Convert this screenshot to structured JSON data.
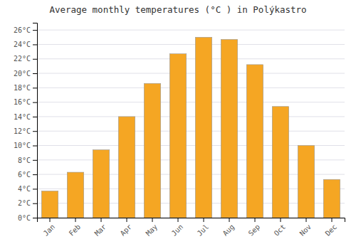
{
  "chart_data": {
    "type": "bar",
    "title": "Average monthly temperatures (°C ) in Polýkastro",
    "categories": [
      "Jan",
      "Feb",
      "Mar",
      "Apr",
      "May",
      "Jun",
      "Jul",
      "Aug",
      "Sep",
      "Oct",
      "Nov",
      "Dec"
    ],
    "values": [
      3.7,
      6.3,
      9.4,
      14.0,
      18.6,
      22.7,
      25.0,
      24.7,
      21.2,
      15.4,
      10.0,
      5.3
    ],
    "color": "#F5A623",
    "ylim": [
      0,
      27
    ],
    "yticks": [
      {
        "value": 0,
        "label": "0°C"
      },
      {
        "value": 2,
        "label": "2°C"
      },
      {
        "value": 4,
        "label": "4°C"
      },
      {
        "value": 6,
        "label": "6°C"
      },
      {
        "value": 8,
        "label": "8°C"
      },
      {
        "value": 10,
        "label": "10°C"
      },
      {
        "value": 12,
        "label": "12°C"
      },
      {
        "value": 14,
        "label": "14°C"
      },
      {
        "value": 16,
        "label": "16°C"
      },
      {
        "value": 18,
        "label": "18°C"
      },
      {
        "value": 20,
        "label": "20°C"
      },
      {
        "value": 22,
        "label": "22°C"
      },
      {
        "value": 24,
        "label": "24°C"
      },
      {
        "value": 26,
        "label": "26°C"
      }
    ],
    "grid": true
  }
}
